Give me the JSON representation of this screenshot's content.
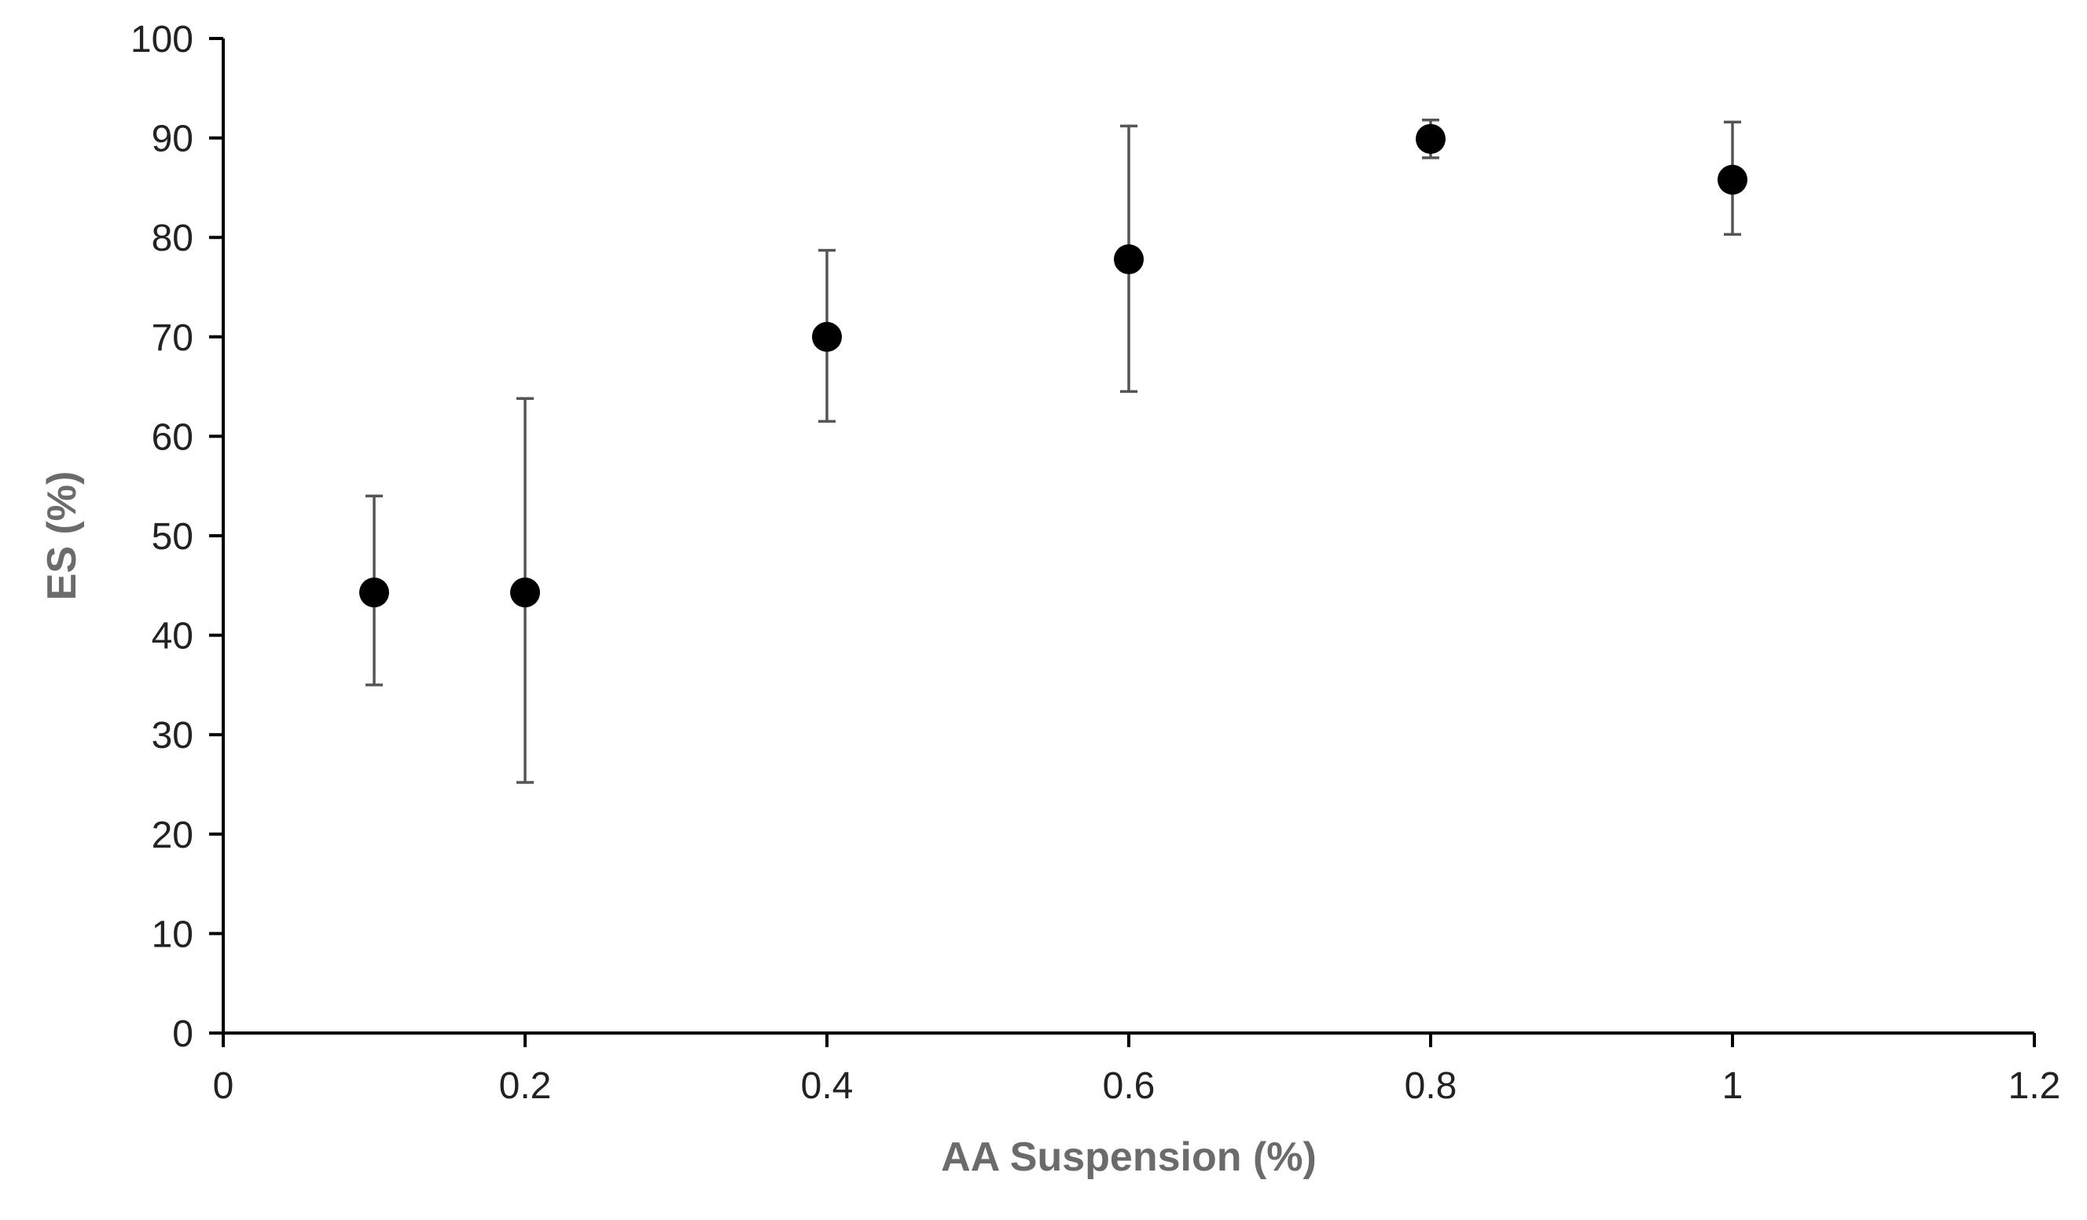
{
  "chart_data": {
    "type": "scatter",
    "title": "",
    "xlabel": "AA Suspension (%)",
    "ylabel": "ES (%)",
    "xlim": [
      0,
      1.2
    ],
    "ylim": [
      0,
      100
    ],
    "x_ticks": [
      0,
      0.2,
      0.4,
      0.6,
      0.8,
      1,
      1.2
    ],
    "x_tick_labels": [
      "0",
      "0.2",
      "0.4",
      "0.6",
      "0.8",
      "1",
      "1.2"
    ],
    "y_ticks": [
      0,
      10,
      20,
      30,
      40,
      50,
      60,
      70,
      80,
      90,
      100
    ],
    "y_tick_labels": [
      "0",
      "10",
      "20",
      "30",
      "40",
      "50",
      "60",
      "70",
      "80",
      "90",
      "100"
    ],
    "grid": false,
    "legend": "none",
    "marker_color": "#000000",
    "error_bar_color": "#555555",
    "axis_color": "#000000",
    "points": [
      {
        "x": 0.1,
        "y": 44.3,
        "y_low": 35.0,
        "y_high": 54.0
      },
      {
        "x": 0.2,
        "y": 44.3,
        "y_low": 25.2,
        "y_high": 63.8
      },
      {
        "x": 0.4,
        "y": 70.0,
        "y_low": 61.5,
        "y_high": 78.7
      },
      {
        "x": 0.6,
        "y": 77.8,
        "y_low": 64.5,
        "y_high": 91.2
      },
      {
        "x": 0.8,
        "y": 89.9,
        "y_low": 88.0,
        "y_high": 91.8
      },
      {
        "x": 1.0,
        "y": 85.8,
        "y_low": 80.3,
        "y_high": 91.6
      }
    ]
  }
}
